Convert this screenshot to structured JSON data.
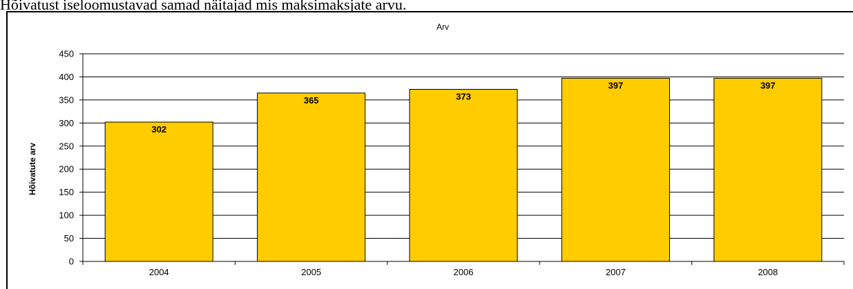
{
  "caption": "Hõivatust iseloomustavad samad näitajad mis maksimaksjate arvu.",
  "chart_data": {
    "type": "bar",
    "title": "Arv",
    "xlabel": "",
    "ylabel": "Hõivatute arv",
    "categories": [
      "2004",
      "2005",
      "2006",
      "2007",
      "2008"
    ],
    "values": [
      302,
      365,
      373,
      397,
      397
    ],
    "ylim": [
      0,
      450
    ],
    "yticks": [
      0,
      50,
      100,
      150,
      200,
      250,
      300,
      350,
      400,
      450
    ],
    "grid": true,
    "legend": "none",
    "bar_color": "#FFCC00",
    "data_labels": true
  }
}
